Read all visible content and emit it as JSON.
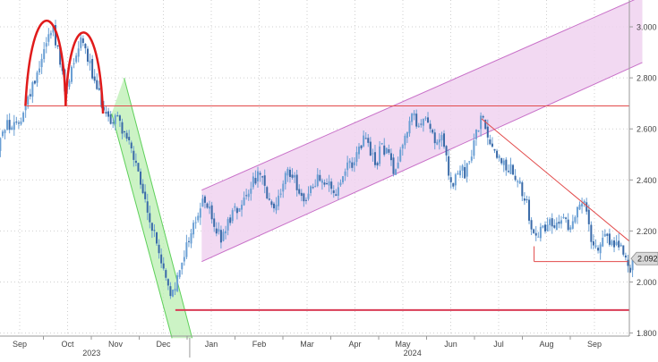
{
  "chart_data": {
    "type": "line",
    "style": "candlestick",
    "title": "",
    "xlabel": "",
    "ylabel": "",
    "x_tick_labels": [
      "Sep",
      "Oct",
      "Nov",
      "Dec",
      "Jan",
      "Feb",
      "Mar",
      "Apr",
      "May",
      "Jun",
      "Jul",
      "Aug",
      "Sep"
    ],
    "x_tick_times": [
      0,
      1,
      2,
      3,
      4,
      5,
      6,
      7,
      8,
      9,
      10,
      11,
      12
    ],
    "year_labels": [
      {
        "text": "2023",
        "t": 1.5
      },
      {
        "text": "2024",
        "t": 8.2
      }
    ],
    "year_divider_t": 3.55,
    "y_tick_labels": [
      "3.000",
      "2.800",
      "2.600",
      "2.400",
      "2.200",
      "2.000",
      "1.800"
    ],
    "y_ticks": [
      3.0,
      2.8,
      2.6,
      2.4,
      2.2,
      2.0,
      1.8
    ],
    "ylim": [
      1.77,
      3.12
    ],
    "xlim": [
      -0.5,
      13.0
    ],
    "grid": true,
    "colors": {
      "candle": "#6a9fd4",
      "candle_dark": "#3a6aa8",
      "red_line": "#e24a4a",
      "horizontal_support": "#d93b55",
      "green_channel_fill": "#bff0b6",
      "green_channel_line": "#5ed05a",
      "purple_channel_fill": "#f0d2f0",
      "purple_channel_line": "#c870c8",
      "price_label_bg": "#d9d9d9",
      "grid": "#cfcfcf"
    },
    "last_price_label": "2.092",
    "last_price_value": 2.092,
    "path_points": [
      [
        -0.5,
        2.48
      ],
      [
        -0.4,
        2.58
      ],
      [
        -0.25,
        2.62
      ],
      [
        -0.1,
        2.6
      ],
      [
        0.05,
        2.66
      ],
      [
        0.18,
        2.72
      ],
      [
        0.32,
        2.8
      ],
      [
        0.45,
        2.88
      ],
      [
        0.58,
        2.96
      ],
      [
        0.7,
        3.0
      ],
      [
        0.78,
        2.92
      ],
      [
        0.88,
        2.82
      ],
      [
        0.96,
        2.72
      ],
      [
        1.06,
        2.82
      ],
      [
        1.17,
        2.9
      ],
      [
        1.28,
        2.96
      ],
      [
        1.38,
        2.92
      ],
      [
        1.48,
        2.84
      ],
      [
        1.58,
        2.76
      ],
      [
        1.68,
        2.72
      ],
      [
        1.78,
        2.68
      ],
      [
        1.9,
        2.62
      ],
      [
        2.0,
        2.66
      ],
      [
        2.1,
        2.62
      ],
      [
        2.2,
        2.58
      ],
      [
        2.32,
        2.52
      ],
      [
        2.44,
        2.44
      ],
      [
        2.55,
        2.36
      ],
      [
        2.66,
        2.28
      ],
      [
        2.78,
        2.2
      ],
      [
        2.88,
        2.14
      ],
      [
        3.0,
        2.04
      ],
      [
        3.1,
        1.98
      ],
      [
        3.22,
        1.94
      ],
      [
        3.3,
        2.02
      ],
      [
        3.4,
        2.1
      ],
      [
        3.52,
        2.16
      ],
      [
        3.62,
        2.22
      ],
      [
        3.72,
        2.26
      ],
      [
        3.82,
        2.32
      ],
      [
        3.9,
        2.3
      ],
      [
        4.0,
        2.26
      ],
      [
        4.12,
        2.2
      ],
      [
        4.22,
        2.16
      ],
      [
        4.32,
        2.22
      ],
      [
        4.45,
        2.28
      ],
      [
        4.6,
        2.3
      ],
      [
        4.75,
        2.36
      ],
      [
        4.88,
        2.4
      ],
      [
        5.0,
        2.42
      ],
      [
        5.12,
        2.36
      ],
      [
        5.25,
        2.28
      ],
      [
        5.38,
        2.32
      ],
      [
        5.5,
        2.38
      ],
      [
        5.62,
        2.44
      ],
      [
        5.75,
        2.4
      ],
      [
        5.88,
        2.34
      ],
      [
        6.0,
        2.32
      ],
      [
        6.12,
        2.38
      ],
      [
        6.25,
        2.42
      ],
      [
        6.38,
        2.4
      ],
      [
        6.5,
        2.36
      ],
      [
        6.62,
        2.34
      ],
      [
        6.75,
        2.4
      ],
      [
        6.88,
        2.46
      ],
      [
        7.0,
        2.48
      ],
      [
        7.12,
        2.52
      ],
      [
        7.22,
        2.58
      ],
      [
        7.32,
        2.5
      ],
      [
        7.44,
        2.46
      ],
      [
        7.56,
        2.54
      ],
      [
        7.68,
        2.5
      ],
      [
        7.8,
        2.44
      ],
      [
        7.92,
        2.5
      ],
      [
        8.02,
        2.56
      ],
      [
        8.12,
        2.62
      ],
      [
        8.2,
        2.68
      ],
      [
        8.3,
        2.58
      ],
      [
        8.4,
        2.62
      ],
      [
        8.5,
        2.66
      ],
      [
        8.6,
        2.6
      ],
      [
        8.7,
        2.52
      ],
      [
        8.8,
        2.58
      ],
      [
        8.9,
        2.48
      ],
      [
        9.0,
        2.38
      ],
      [
        9.1,
        2.4
      ],
      [
        9.2,
        2.44
      ],
      [
        9.3,
        2.42
      ],
      [
        9.4,
        2.48
      ],
      [
        9.5,
        2.56
      ],
      [
        9.6,
        2.62
      ],
      [
        9.68,
        2.64
      ],
      [
        9.76,
        2.58
      ],
      [
        9.86,
        2.54
      ],
      [
        9.96,
        2.5
      ],
      [
        10.06,
        2.48
      ],
      [
        10.16,
        2.44
      ],
      [
        10.26,
        2.46
      ],
      [
        10.36,
        2.42
      ],
      [
        10.46,
        2.38
      ],
      [
        10.56,
        2.32
      ],
      [
        10.66,
        2.24
      ],
      [
        10.76,
        2.16
      ],
      [
        10.86,
        2.2
      ],
      [
        10.96,
        2.22
      ],
      [
        11.08,
        2.24
      ],
      [
        11.2,
        2.22
      ],
      [
        11.32,
        2.24
      ],
      [
        11.42,
        2.22
      ],
      [
        11.52,
        2.24
      ],
      [
        11.62,
        2.28
      ],
      [
        11.72,
        2.32
      ],
      [
        11.8,
        2.3
      ],
      [
        11.88,
        2.22
      ],
      [
        11.96,
        2.16
      ],
      [
        12.06,
        2.14
      ],
      [
        12.16,
        2.18
      ],
      [
        12.26,
        2.2
      ],
      [
        12.36,
        2.14
      ],
      [
        12.46,
        2.16
      ],
      [
        12.56,
        2.14
      ],
      [
        12.66,
        2.1
      ],
      [
        12.74,
        2.05
      ],
      [
        12.8,
        2.092
      ]
    ],
    "annotations": {
      "double_top_arcs": [
        {
          "from": [
            0.12,
            2.69
          ],
          "peak": [
            0.7,
            3.02
          ],
          "to": [
            0.96,
            2.69
          ]
        },
        {
          "from": [
            0.96,
            2.69
          ],
          "peak": [
            1.3,
            2.97
          ],
          "to": [
            1.74,
            2.66
          ]
        }
      ],
      "horizontal_line_high": {
        "y": 2.69,
        "x_from": 0.15,
        "x_to": 13.0
      },
      "horizontal_line_low": {
        "y": 1.89,
        "x_from": 3.25,
        "x_to": 13.0
      },
      "horizontal_line_short": {
        "y": 2.08,
        "x_from": 10.74,
        "x_to": 12.7
      },
      "falling_line": {
        "from": [
          9.64,
          2.64
        ],
        "to": [
          13.0,
          2.16
        ]
      },
      "green_channel": {
        "upper": [
          [
            2.18,
            2.8
          ],
          [
            3.6,
            1.78
          ]
        ],
        "lower": [
          [
            1.92,
            2.66
          ],
          [
            3.18,
            1.78
          ]
        ]
      },
      "purple_channel": {
        "upper": [
          [
            3.8,
            2.36
          ],
          [
            13.0,
            3.12
          ]
        ],
        "lower": [
          [
            3.8,
            2.08
          ],
          [
            13.0,
            2.86
          ]
        ]
      }
    }
  }
}
